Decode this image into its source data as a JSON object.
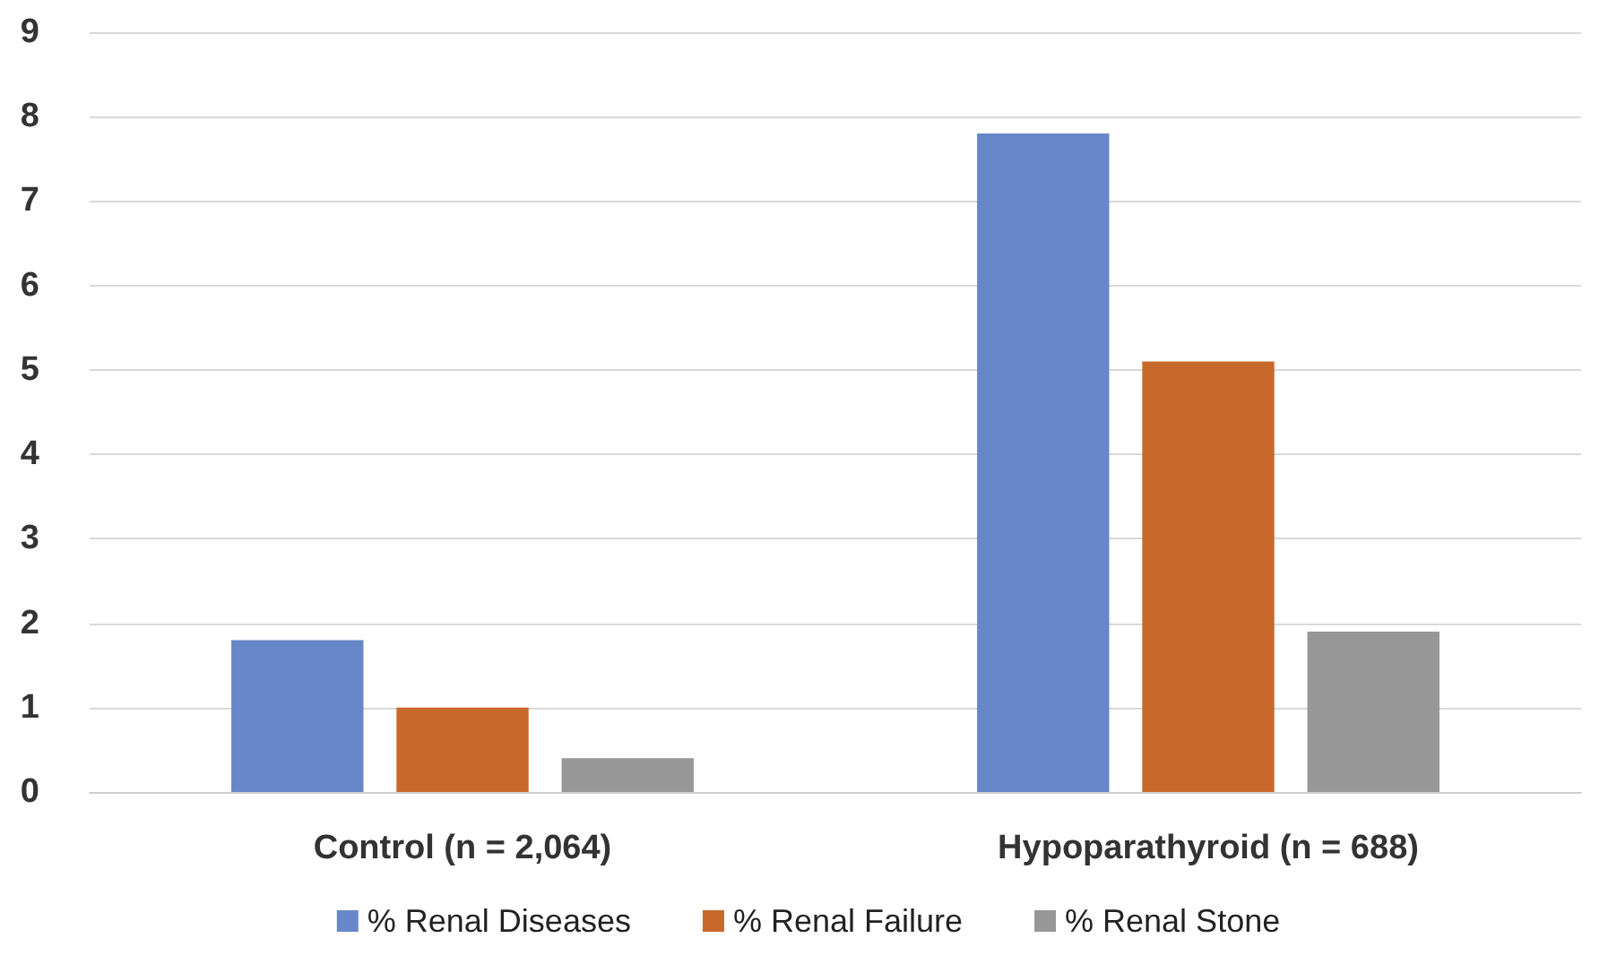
{
  "chart_data": {
    "type": "bar",
    "categories": [
      "Control (n = 2,064)",
      "Hypoparathyroid (n = 688)"
    ],
    "series": [
      {
        "name": "% Renal Diseases",
        "color": "#6787c9",
        "values": [
          1.8,
          7.8
        ]
      },
      {
        "name": "% Renal Failure",
        "color": "#c8692c",
        "values": [
          1.0,
          5.1
        ]
      },
      {
        "name": "% Renal Stone",
        "color": "#979797",
        "values": [
          0.4,
          1.9
        ]
      }
    ],
    "ylim": [
      0,
      9
    ],
    "yticks": [
      0,
      1,
      2,
      3,
      4,
      5,
      6,
      7,
      8,
      9
    ],
    "grid": "y",
    "legend": "bottom"
  }
}
